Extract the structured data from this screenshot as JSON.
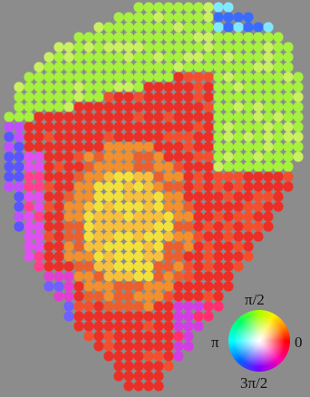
{
  "color_wheel": {
    "labels": {
      "top": "π/2",
      "left": "π",
      "right": "0",
      "bottom": "3π/2"
    }
  }
}
